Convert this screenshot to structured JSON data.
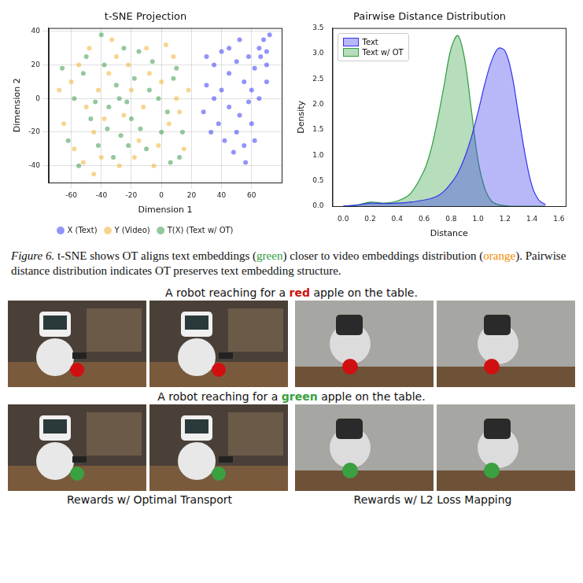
{
  "chart_data": [
    {
      "type": "scatter",
      "title": "t-SNE Projection",
      "x_label": "Dimension 1",
      "y_label": "Dimension 2",
      "xlim": [
        -75,
        80
      ],
      "xticks": [
        -60,
        -40,
        -20,
        0,
        20,
        40,
        60
      ],
      "ylim": [
        -50,
        42
      ],
      "yticks": [
        -40,
        -20,
        0,
        20,
        40
      ],
      "grid": true,
      "legend": "bottom",
      "marker": "circle",
      "series": [
        {
          "name": "X (Text)",
          "color": "#3b3bf5",
          "x": [
            30,
            35,
            40,
            45,
            50,
            55,
            60,
            65,
            68,
            70,
            72,
            66,
            62,
            58,
            52,
            45,
            38,
            42,
            50,
            55,
            60,
            48,
            35,
            30,
            28,
            40,
            65,
            70,
            62,
            45,
            52,
            58,
            70,
            33,
            56
          ],
          "values": [
            25,
            20,
            28,
            15,
            22,
            10,
            5,
            30,
            35,
            28,
            38,
            25,
            18,
            -2,
            -10,
            -5,
            -15,
            -25,
            -20,
            -28,
            -15,
            -32,
            0,
            8,
            -8,
            5,
            0,
            10,
            -25,
            30,
            35,
            25,
            20,
            -20,
            -38
          ]
        },
        {
          "name": "Y (Video)",
          "color": "#f2b233",
          "x": [
            -60,
            -55,
            -50,
            -45,
            -40,
            -35,
            -30,
            -25,
            -20,
            -15,
            -10,
            -5,
            0,
            5,
            10,
            15,
            -65,
            -58,
            -48,
            -42,
            -38,
            -28,
            -22,
            -12,
            -8,
            -2,
            8,
            12,
            18,
            -52,
            -68,
            -33,
            3,
            -18,
            -45
          ],
          "values": [
            10,
            20,
            -5,
            -20,
            -35,
            15,
            25,
            -10,
            5,
            -25,
            30,
            -40,
            10,
            -15,
            0,
            -30,
            -15,
            -30,
            30,
            5,
            -12,
            -40,
            20,
            -5,
            15,
            -28,
            25,
            -8,
            5,
            -38,
            5,
            35,
            32,
            -35,
            -45
          ]
        },
        {
          "name": "T(X) (Text w/ OT)",
          "color": "#3a9a4a",
          "x": [
            -58,
            -52,
            -47,
            -42,
            -38,
            -35,
            -30,
            -27,
            -23,
            -18,
            -14,
            -10,
            -6,
            -2,
            4,
            8,
            14,
            -62,
            -50,
            -40,
            -32,
            -25,
            -20,
            -8,
            0,
            6,
            12,
            -55,
            -66,
            -28,
            -15,
            10,
            -44,
            -36,
            -22
          ],
          "values": [
            0,
            15,
            -12,
            -28,
            20,
            -5,
            8,
            -22,
            -2,
            12,
            -18,
            -30,
            22,
            0,
            -8,
            12,
            -20,
            -25,
            25,
            38,
            -35,
            30,
            -12,
            5,
            -20,
            -38,
            -35,
            -40,
            18,
            0,
            28,
            18,
            -2,
            -18,
            -28
          ]
        }
      ]
    },
    {
      "type": "line",
      "title": "Pairwise Distance Distribution",
      "x_label": "Distance",
      "y_label": "Density",
      "xlim": [
        -0.08,
        1.65
      ],
      "xticks": [
        {
          "value": 0,
          "label": "0.0"
        },
        {
          "value": 0.2,
          "label": "0.2"
        },
        {
          "value": 0.4,
          "label": "0.4"
        },
        {
          "value": 0.6,
          "label": "0.6"
        },
        {
          "value": 0.8,
          "label": "0.8"
        },
        {
          "value": 1,
          "label": "1.0"
        },
        {
          "value": 1.2,
          "label": "1.2"
        },
        {
          "value": 1.4,
          "label": "1.4"
        },
        {
          "value": 1.6,
          "label": "1.6"
        }
      ],
      "ylim": [
        0,
        3.5
      ],
      "yticks": [
        {
          "value": 0,
          "label": "0.0"
        },
        {
          "value": 0.5,
          "label": "0.5"
        },
        {
          "value": 1,
          "label": "1.0"
        },
        {
          "value": 1.5,
          "label": "1.5"
        },
        {
          "value": 2,
          "label": "2.0"
        },
        {
          "value": 2.5,
          "label": "2.5"
        },
        {
          "value": 3,
          "label": "3.0"
        },
        {
          "value": 3.5,
          "label": "3.5"
        }
      ],
      "grid": false,
      "legend": "upper left",
      "x": [
        0,
        0.1,
        0.2,
        0.3,
        0.4,
        0.5,
        0.6,
        0.65,
        0.7,
        0.75,
        0.8,
        0.85,
        0.9,
        0.95,
        1.0,
        1.05,
        1.1,
        1.15,
        1.2,
        1.25,
        1.3,
        1.35,
        1.4,
        1.45,
        1.5
      ],
      "series": [
        {
          "name": "Text",
          "color": "#3333ee",
          "values": [
            0.0,
            0.02,
            0.06,
            0.05,
            0.06,
            0.08,
            0.12,
            0.15,
            0.2,
            0.3,
            0.45,
            0.65,
            0.95,
            1.35,
            1.85,
            2.4,
            2.85,
            3.1,
            3.05,
            2.6,
            1.8,
            1.0,
            0.4,
            0.12,
            0.03
          ]
        },
        {
          "name": "Text w/ OT",
          "color": "#2e9e3e",
          "values": [
            0.0,
            0.02,
            0.08,
            0.06,
            0.1,
            0.25,
            0.7,
            1.1,
            1.7,
            2.4,
            3.1,
            3.35,
            2.9,
            1.9,
            0.9,
            0.35,
            0.1,
            0.03,
            0.01,
            0.0,
            0.0,
            0.0,
            0.0,
            0.0,
            0.0
          ]
        }
      ]
    }
  ],
  "caption": {
    "label": "Figure 6.",
    "segments": [
      {
        "text": " t-SNE shows OT aligns text embeddings ("
      },
      {
        "text": "green",
        "color": "#2e9e3e"
      },
      {
        "text": ") closer to video embeddings distribution ("
      },
      {
        "text": "orange",
        "color": "#f08a00"
      },
      {
        "text": "). Pairwise distance distribution indicates OT preserves text embedding structure."
      }
    ]
  },
  "examples": {
    "rows": [
      {
        "prompt": [
          {
            "text": "A robot reaching for a "
          },
          {
            "text": "red",
            "color": "#d01010"
          },
          {
            "text": " apple on the table."
          }
        ]
      },
      {
        "prompt": [
          {
            "text": "A robot reaching for a "
          },
          {
            "text": "green",
            "color": "#3aa040"
          },
          {
            "text": " apple on the table."
          }
        ]
      }
    ],
    "column_labels": [
      "Rewards w/ Optimal Transport",
      "Rewards w/ L2 Loss Mapping"
    ]
  }
}
